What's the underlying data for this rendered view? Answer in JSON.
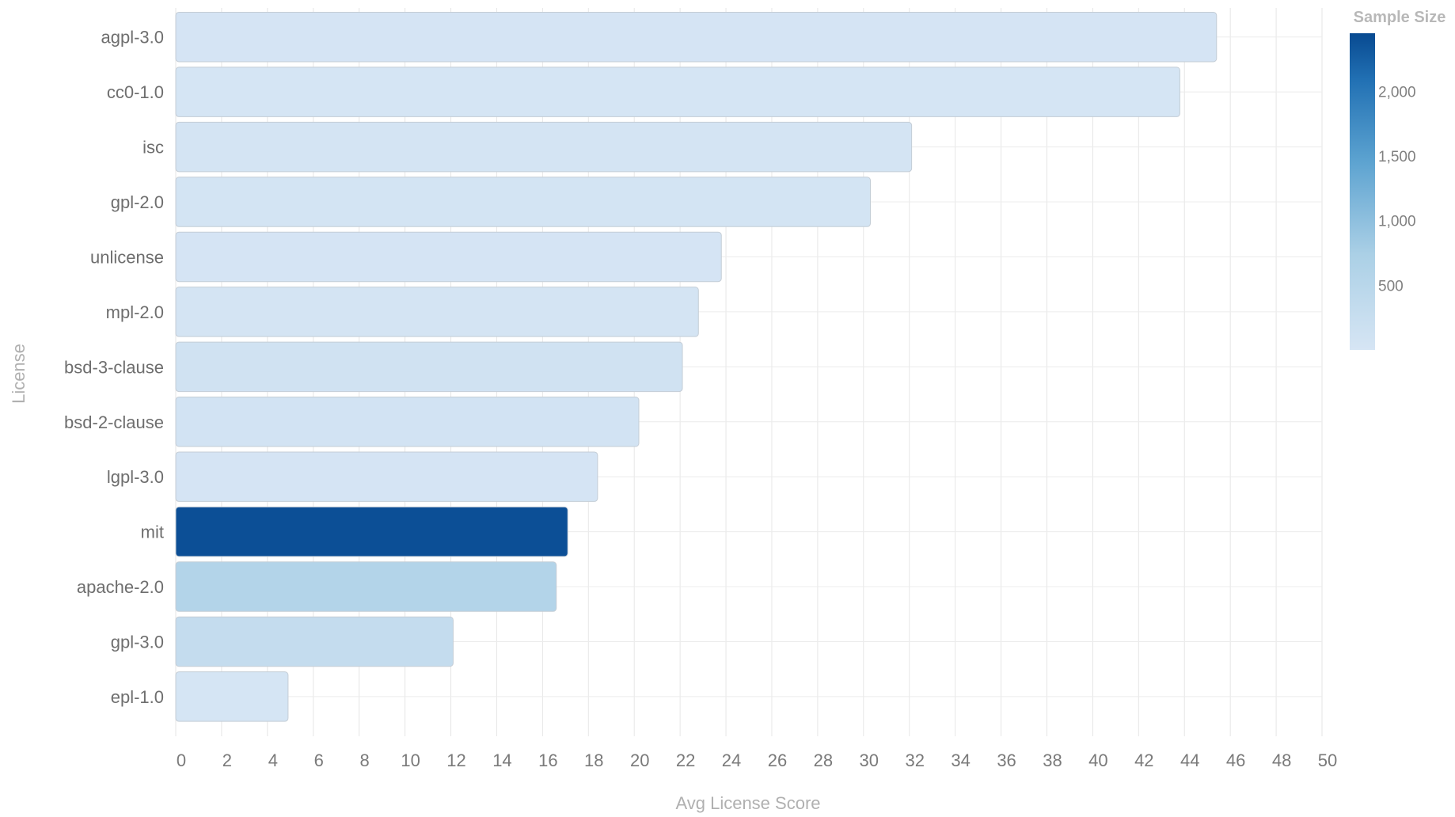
{
  "chart_data": {
    "type": "bar",
    "orientation": "horizontal",
    "title": "",
    "xlabel": "Avg License Score",
    "ylabel": "License",
    "xlim": [
      0,
      50
    ],
    "x_ticks": [
      "0",
      "2",
      "4",
      "6",
      "8",
      "10",
      "12",
      "14",
      "16",
      "18",
      "20",
      "22",
      "24",
      "26",
      "28",
      "30",
      "32",
      "34",
      "36",
      "38",
      "40",
      "42",
      "44",
      "46",
      "48",
      "50"
    ],
    "grid": true,
    "categories": [
      "agpl-3.0",
      "cc0-1.0",
      "isc",
      "gpl-2.0",
      "unlicense",
      "mpl-2.0",
      "bsd-3-clause",
      "bsd-2-clause",
      "lgpl-3.0",
      "mit",
      "apache-2.0",
      "gpl-3.0",
      "epl-1.0"
    ],
    "values": [
      45.4,
      43.8,
      32.1,
      30.3,
      23.8,
      22.8,
      22.1,
      20.2,
      18.4,
      17.1,
      16.6,
      12.1,
      4.9
    ],
    "sample_size": [
      20,
      15,
      40,
      50,
      25,
      35,
      110,
      60,
      20,
      2400,
      600,
      300,
      15
    ],
    "colorbar": {
      "title": "Sample Size",
      "range": [
        0,
        2450
      ],
      "ticks": [
        "500",
        "1,000",
        "1,500",
        "2,000"
      ],
      "tick_values": [
        500,
        1000,
        1500,
        2000
      ],
      "colors": [
        "#d0e1f2",
        "#094a8f"
      ],
      "placement": "top-right"
    }
  }
}
